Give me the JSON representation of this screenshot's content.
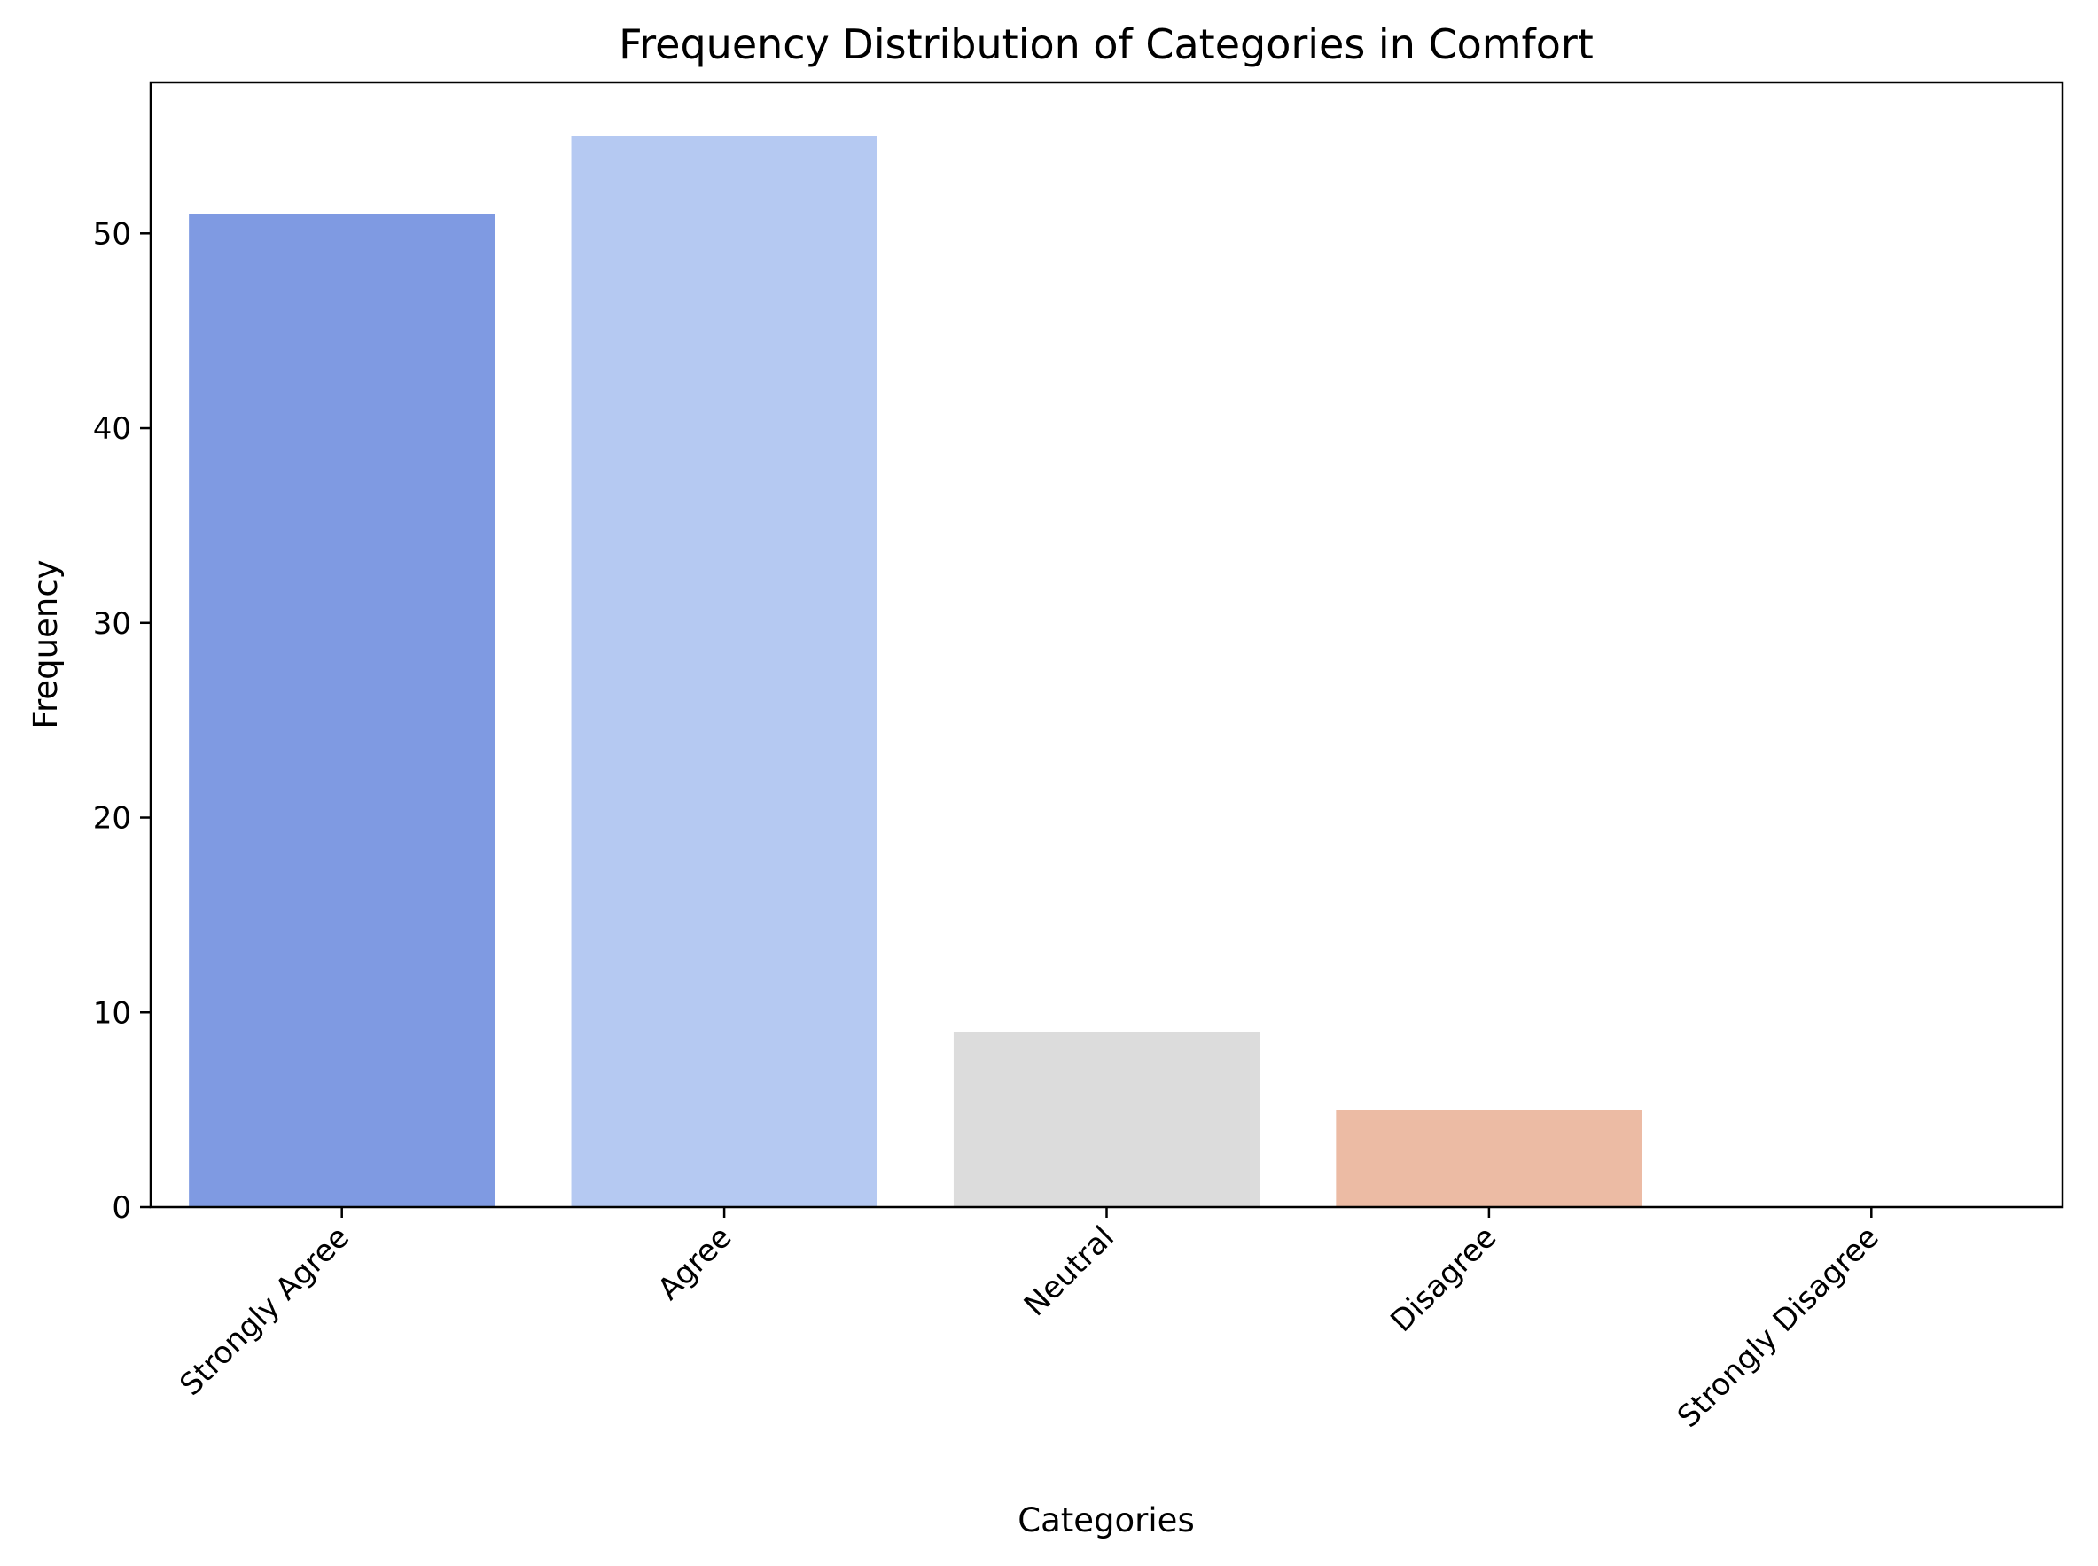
{
  "chart_data": {
    "type": "bar",
    "title": "Frequency Distribution of Categories in Comfort",
    "xlabel": "Categories",
    "ylabel": "Frequency",
    "categories": [
      "Strongly Agree",
      "Agree",
      "Neutral",
      "Disagree",
      "Strongly Disagree"
    ],
    "values": [
      51,
      55,
      9,
      5,
      0
    ],
    "colors": [
      "#7f9ae2",
      "#b5c9f2",
      "#dcdcdc",
      "#ecbba4",
      "#e37f66"
    ],
    "ylim": [
      0,
      57.75
    ],
    "yticks": [
      0,
      10,
      20,
      30,
      40,
      50
    ],
    "grid": false,
    "legend": "none"
  }
}
